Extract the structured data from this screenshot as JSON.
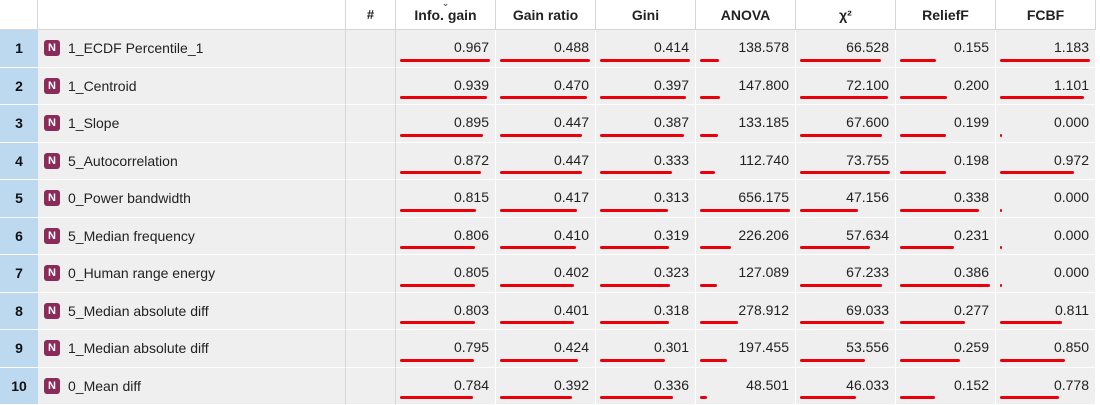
{
  "headers": {
    "hash": "#",
    "sort_indicator": "⌄",
    "info_gain": "Info. gain",
    "gain_ratio": "Gain ratio",
    "gini": "Gini",
    "anova": "ANOVA",
    "chi2": "χ²",
    "relieff": "ReliefF",
    "fcbf": "FCBF"
  },
  "type_badge": "N",
  "bar_color": "#e8000b",
  "rows": [
    {
      "idx": "1",
      "name": "1_ECDF Percentile_1",
      "info_gain": "0.967",
      "gain_ratio": "0.488",
      "gini": "0.414",
      "anova": "138.578",
      "chi2": "66.528",
      "relieff": "0.155",
      "fcbf": "1.183"
    },
    {
      "idx": "2",
      "name": "1_Centroid",
      "info_gain": "0.939",
      "gain_ratio": "0.470",
      "gini": "0.397",
      "anova": "147.800",
      "chi2": "72.100",
      "relieff": "0.200",
      "fcbf": "1.101"
    },
    {
      "idx": "3",
      "name": "1_Slope",
      "info_gain": "0.895",
      "gain_ratio": "0.447",
      "gini": "0.387",
      "anova": "133.185",
      "chi2": "67.600",
      "relieff": "0.199",
      "fcbf": "0.000"
    },
    {
      "idx": "4",
      "name": "5_Autocorrelation",
      "info_gain": "0.872",
      "gain_ratio": "0.447",
      "gini": "0.333",
      "anova": "112.740",
      "chi2": "73.755",
      "relieff": "0.198",
      "fcbf": "0.972"
    },
    {
      "idx": "5",
      "name": "0_Power bandwidth",
      "info_gain": "0.815",
      "gain_ratio": "0.417",
      "gini": "0.313",
      "anova": "656.175",
      "chi2": "47.156",
      "relieff": "0.338",
      "fcbf": "0.000"
    },
    {
      "idx": "6",
      "name": "5_Median frequency",
      "info_gain": "0.806",
      "gain_ratio": "0.410",
      "gini": "0.319",
      "anova": "226.206",
      "chi2": "57.634",
      "relieff": "0.231",
      "fcbf": "0.000"
    },
    {
      "idx": "7",
      "name": "0_Human range energy",
      "info_gain": "0.805",
      "gain_ratio": "0.402",
      "gini": "0.323",
      "anova": "127.089",
      "chi2": "67.233",
      "relieff": "0.386",
      "fcbf": "0.000"
    },
    {
      "idx": "8",
      "name": "5_Median absolute diff",
      "info_gain": "0.803",
      "gain_ratio": "0.401",
      "gini": "0.318",
      "anova": "278.912",
      "chi2": "69.033",
      "relieff": "0.277",
      "fcbf": "0.811"
    },
    {
      "idx": "9",
      "name": "1_Median absolute diff",
      "info_gain": "0.795",
      "gain_ratio": "0.424",
      "gini": "0.301",
      "anova": "197.455",
      "chi2": "53.556",
      "relieff": "0.259",
      "fcbf": "0.850"
    },
    {
      "idx": "10",
      "name": "0_Mean diff",
      "info_gain": "0.784",
      "gain_ratio": "0.392",
      "gini": "0.336",
      "anova": "48.501",
      "chi2": "46.033",
      "relieff": "0.152",
      "fcbf": "0.778"
    }
  ]
}
